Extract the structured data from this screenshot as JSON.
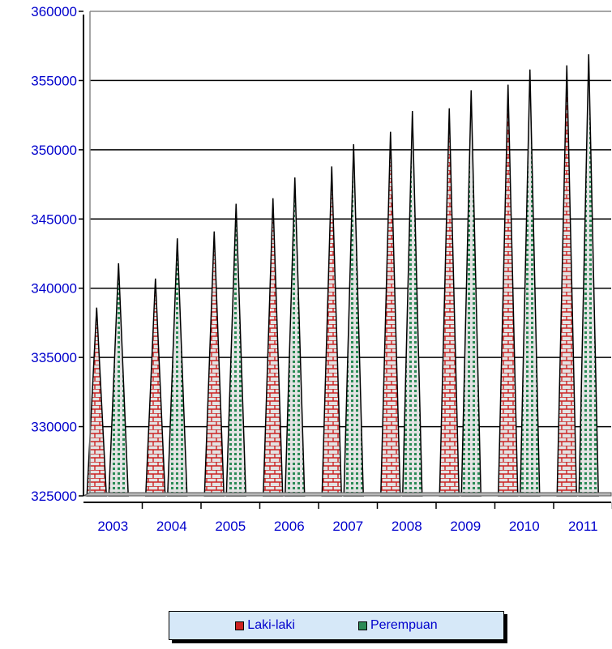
{
  "chart_data": {
    "type": "bar",
    "shape": "cone",
    "categories": [
      "2003",
      "2004",
      "2005",
      "2006",
      "2007",
      "2008",
      "2009",
      "2010",
      "2011"
    ],
    "series": [
      {
        "name": "Laki-laki",
        "color": "#cc2222",
        "values": [
          338600,
          340700,
          344100,
          346500,
          348800,
          351300,
          353000,
          354700,
          356100
        ]
      },
      {
        "name": "Perempuan",
        "color": "#2a8a55",
        "values": [
          341800,
          343600,
          346100,
          348000,
          350400,
          352800,
          354300,
          355800,
          356900
        ]
      }
    ],
    "y_ticks": [
      "325000",
      "330000",
      "335000",
      "340000",
      "345000",
      "350000",
      "355000",
      "360000"
    ],
    "ylim": [
      325000,
      360000
    ],
    "grid": true,
    "legend_position": "bottom",
    "tick_color": "#0000cc"
  },
  "legend": {
    "items": [
      {
        "label": "Laki-laki",
        "color": "#cc2222"
      },
      {
        "label": "Perempuan",
        "color": "#2a8a55"
      }
    ]
  }
}
